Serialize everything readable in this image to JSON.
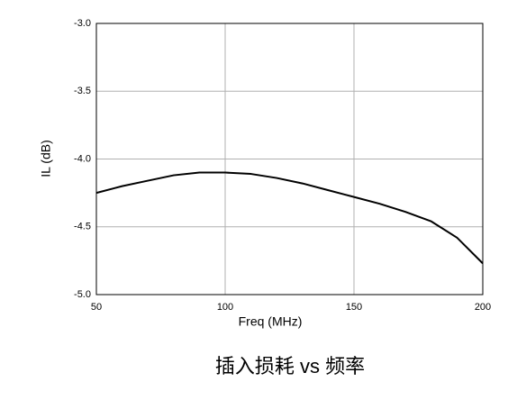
{
  "chart_data": {
    "type": "line",
    "caption": "插入损耗 vs 频率",
    "x_label": "Freq (MHz)",
    "y_label": "IL (dB)",
    "x": [
      50,
      60,
      70,
      80,
      90,
      100,
      110,
      120,
      130,
      140,
      150,
      160,
      170,
      180,
      190,
      200
    ],
    "series": [
      {
        "name": "IL",
        "color": "#000000",
        "values": [
          -4.25,
          -4.2,
          -4.16,
          -4.12,
          -4.1,
          -4.1,
          -4.11,
          -4.14,
          -4.18,
          -4.23,
          -4.28,
          -4.33,
          -4.39,
          -4.46,
          -4.58,
          -4.77
        ]
      }
    ],
    "xlim": [
      50,
      200
    ],
    "xticks": [
      50,
      100,
      150,
      200
    ],
    "ylim": [
      -5,
      -3
    ],
    "yticks": [
      {
        "value": -5,
        "label": "-5.0"
      },
      -4.5,
      {
        "value": -4,
        "label": "-4.0"
      },
      -3.5,
      {
        "value": -3,
        "label": "-3.0"
      }
    ],
    "grid": true
  }
}
